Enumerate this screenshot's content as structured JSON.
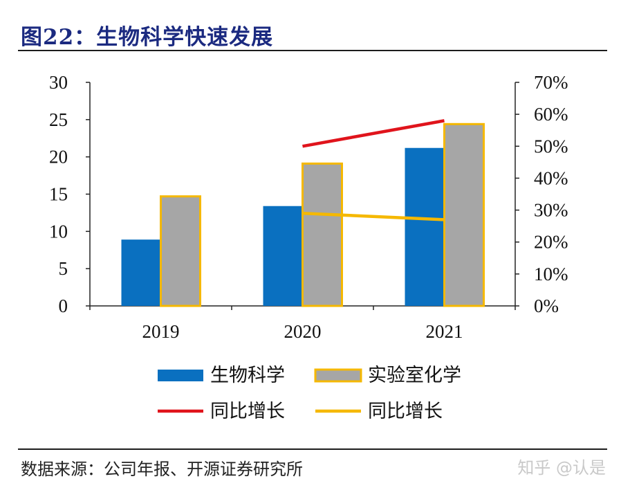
{
  "title": "图22：生物科学快速发展",
  "source": "数据来源：公司年报、开源证券研究所",
  "watermark": "知乎 @认是",
  "chart_data": {
    "type": "bar",
    "categories": [
      "2019",
      "2020",
      "2021"
    ],
    "series": [
      {
        "name": "生物科学",
        "kind": "bar",
        "axis": "left",
        "color": "#0a70c0",
        "values": [
          8.9,
          13.4,
          21.2
        ]
      },
      {
        "name": "实验室化学",
        "kind": "bar",
        "axis": "left",
        "color": "#a6a6a6",
        "edge": "#f5b800",
        "values": [
          14.7,
          19.1,
          24.4
        ]
      },
      {
        "name": "同比增长",
        "kind": "line",
        "axis": "right",
        "color": "#e0141c",
        "values": [
          null,
          0.5,
          0.58
        ]
      },
      {
        "name": "同比增长",
        "kind": "line",
        "axis": "right",
        "color": "#f5b800",
        "values": [
          null,
          0.29,
          0.27
        ]
      }
    ],
    "ylim": [
      0,
      30
    ],
    "yticks": [
      "0",
      "5",
      "10",
      "15",
      "20",
      "25",
      "30"
    ],
    "y2lim": [
      0,
      0.7
    ],
    "y2ticks": [
      "0%",
      "10%",
      "20%",
      "30%",
      "40%",
      "50%",
      "60%",
      "70%"
    ],
    "legend_position": "bottom",
    "grid": false
  }
}
